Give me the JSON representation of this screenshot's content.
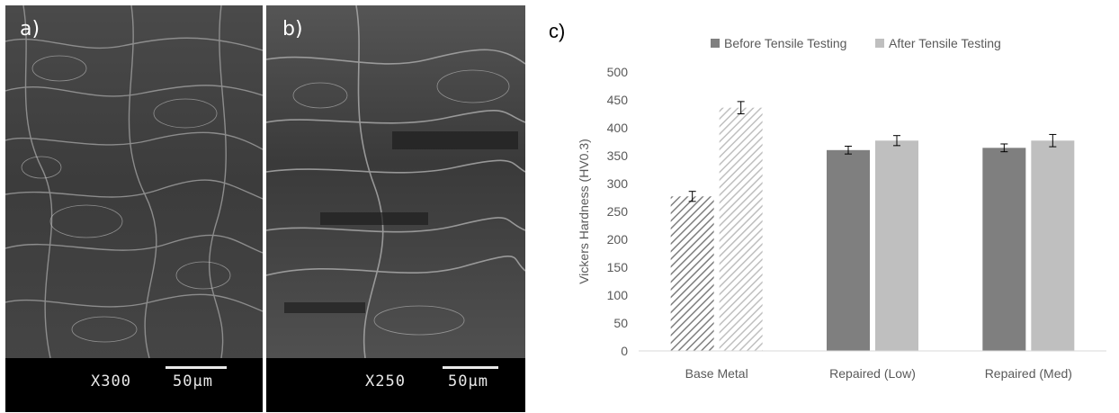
{
  "panels": [
    {
      "label": "a)",
      "magnification": "X300",
      "scale": "50µm"
    },
    {
      "label": "b)",
      "magnification": "X250",
      "scale": "50µm"
    }
  ],
  "chart_data": {
    "type": "bar",
    "panel_label": "c)",
    "title": "",
    "xlabel": "",
    "ylabel": "Vickers Hardness (HV0.3)",
    "ylim": [
      0,
      500
    ],
    "yticks": [
      0,
      50,
      100,
      150,
      200,
      250,
      300,
      350,
      400,
      450,
      500
    ],
    "categories": [
      "Base Metal",
      "Repaired (Low)",
      "Repaired (Med)"
    ],
    "series": [
      {
        "name": "Before Tensile Testing",
        "values": [
          277,
          360,
          364
        ],
        "errors": [
          9,
          7,
          7
        ],
        "color": "#7f7f7f"
      },
      {
        "name": "After Tensile Testing",
        "values": [
          436,
          377,
          377
        ],
        "errors": [
          11,
          9,
          11
        ],
        "color": "#bfbfbf"
      }
    ],
    "hatched_category": "Base Metal",
    "legend_position": "top",
    "grid": false
  }
}
